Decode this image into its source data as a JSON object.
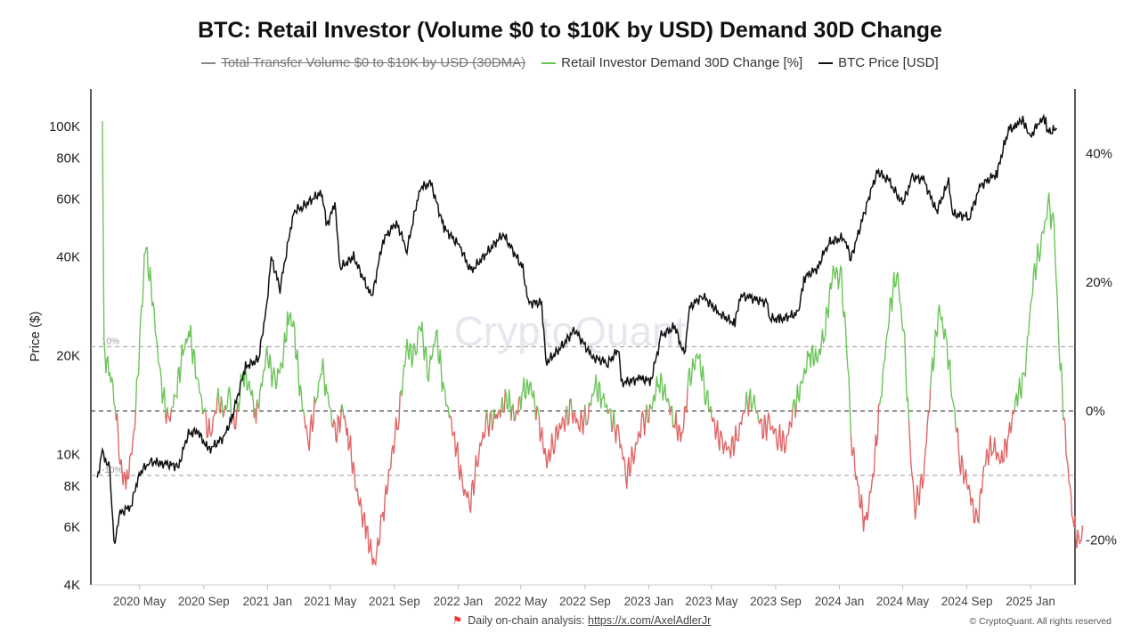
{
  "title": "BTC: Retail Investor (Volume $0 to $10K by USD) Demand 30D Change",
  "legend": [
    {
      "label": "Total Transfer Volume $0 to $10K by USD (30DMA)",
      "color": "#888888",
      "disabled": true
    },
    {
      "label": "Retail Investor Demand 30D Change [%]",
      "color": "#6cc55a",
      "disabled": false
    },
    {
      "label": "BTC Price [USD]",
      "color": "#111111",
      "disabled": false
    }
  ],
  "colors": {
    "positive": "#6cc55a",
    "negative": "#e06666",
    "price": "#111111"
  },
  "watermark": "CryptoQuant",
  "footer": {
    "text": "Daily on-chain analysis: ",
    "link": "https://x.com/AxelAdlerJr",
    "copyright": "© CryptoQuant. All rights reserved"
  },
  "chart_data": {
    "type": "line",
    "x_ticks": [
      "2020 May",
      "2020 Sep",
      "2021 Jan",
      "2021 May",
      "2021 Sep",
      "2022 Jan",
      "2022 May",
      "2022 Sep",
      "2023 Jan",
      "2023 May",
      "2023 Sep",
      "2024 Jan",
      "2024 May",
      "2024 Sep",
      "2025 Jan"
    ],
    "ylabel_left": "Price ($)",
    "y_left_scale": "log",
    "y_left_range": [
      4000,
      130000
    ],
    "y_left_ticks": [
      {
        "v": 4000,
        "label": "4K"
      },
      {
        "v": 6000,
        "label": "6K"
      },
      {
        "v": 8000,
        "label": "8K"
      },
      {
        "v": 10000,
        "label": "10K"
      },
      {
        "v": 20000,
        "label": "20K"
      },
      {
        "v": 40000,
        "label": "40K"
      },
      {
        "v": 60000,
        "label": "60K"
      },
      {
        "v": 80000,
        "label": "80K"
      },
      {
        "v": 100000,
        "label": "100K"
      }
    ],
    "y_right_range": [
      -27,
      50
    ],
    "y_right_ticks": [
      {
        "v": 40,
        "label": "40%"
      },
      {
        "v": 20,
        "label": "20%"
      },
      {
        "v": 0,
        "label": "0%"
      },
      {
        "v": -20,
        "label": "-20%"
      }
    ],
    "reference_lines": [
      {
        "v": 10,
        "label": "10%"
      },
      {
        "v": 0,
        "label": ""
      },
      {
        "v": -10,
        "label": "-10%"
      }
    ],
    "series": [
      {
        "name": "BTC Price [USD]",
        "axis": "left",
        "points": [
          [
            "2020-02-10",
            8500
          ],
          [
            "2020-02-20",
            10100
          ],
          [
            "2020-03-05",
            9000
          ],
          [
            "2020-03-13",
            5300
          ],
          [
            "2020-03-25",
            6600
          ],
          [
            "2020-04-15",
            7000
          ],
          [
            "2020-04-30",
            8700
          ],
          [
            "2020-05-20",
            9500
          ],
          [
            "2020-06-15",
            9400
          ],
          [
            "2020-07-15",
            9200
          ],
          [
            "2020-08-01",
            11500
          ],
          [
            "2020-08-20",
            11800
          ],
          [
            "2020-09-10",
            10300
          ],
          [
            "2020-10-10",
            11300
          ],
          [
            "2020-10-25",
            13000
          ],
          [
            "2020-11-20",
            18500
          ],
          [
            "2020-12-15",
            19500
          ],
          [
            "2020-12-31",
            29000
          ],
          [
            "2021-01-08",
            40000
          ],
          [
            "2021-01-25",
            32000
          ],
          [
            "2021-02-20",
            55000
          ],
          [
            "2021-03-10",
            57000
          ],
          [
            "2021-04-14",
            63000
          ],
          [
            "2021-04-25",
            50000
          ],
          [
            "2021-05-10",
            58000
          ],
          [
            "2021-05-20",
            37000
          ],
          [
            "2021-06-15",
            40000
          ],
          [
            "2021-07-20",
            30000
          ],
          [
            "2021-08-10",
            45000
          ],
          [
            "2021-09-05",
            51000
          ],
          [
            "2021-09-25",
            42000
          ],
          [
            "2021-10-20",
            65000
          ],
          [
            "2021-11-10",
            67000
          ],
          [
            "2021-12-05",
            49000
          ],
          [
            "2022-01-05",
            43000
          ],
          [
            "2022-01-25",
            36000
          ],
          [
            "2022-03-28",
            47000
          ],
          [
            "2022-05-05",
            37000
          ],
          [
            "2022-05-15",
            29000
          ],
          [
            "2022-06-10",
            29000
          ],
          [
            "2022-06-18",
            19000
          ],
          [
            "2022-07-15",
            21000
          ],
          [
            "2022-08-12",
            24000
          ],
          [
            "2022-09-15",
            19800
          ],
          [
            "2022-10-15",
            19000
          ],
          [
            "2022-11-05",
            21000
          ],
          [
            "2022-11-09",
            16500
          ],
          [
            "2022-12-15",
            17000
          ],
          [
            "2023-01-05",
            16800
          ],
          [
            "2023-01-25",
            23000
          ],
          [
            "2023-02-20",
            24500
          ],
          [
            "2023-03-10",
            20000
          ],
          [
            "2023-03-20",
            28000
          ],
          [
            "2023-04-14",
            30500
          ],
          [
            "2023-05-15",
            27000
          ],
          [
            "2023-06-15",
            25000
          ],
          [
            "2023-06-25",
            30500
          ],
          [
            "2023-07-15",
            30000
          ],
          [
            "2023-08-15",
            29000
          ],
          [
            "2023-08-20",
            26000
          ],
          [
            "2023-09-10",
            25800
          ],
          [
            "2023-10-15",
            27000
          ],
          [
            "2023-10-25",
            34500
          ],
          [
            "2023-11-20",
            37000
          ],
          [
            "2023-12-10",
            44000
          ],
          [
            "2024-01-10",
            46000
          ],
          [
            "2024-01-23",
            39500
          ],
          [
            "2024-02-28",
            62000
          ],
          [
            "2024-03-14",
            73000
          ],
          [
            "2024-04-05",
            68000
          ],
          [
            "2024-05-01",
            58000
          ],
          [
            "2024-05-20",
            70000
          ],
          [
            "2024-06-10",
            69000
          ],
          [
            "2024-07-05",
            55000
          ],
          [
            "2024-07-28",
            68000
          ],
          [
            "2024-08-05",
            54000
          ],
          [
            "2024-09-06",
            53000
          ],
          [
            "2024-09-27",
            66000
          ],
          [
            "2024-10-29",
            72000
          ],
          [
            "2024-11-13",
            90000
          ],
          [
            "2024-11-22",
            98000
          ],
          [
            "2024-12-05",
            100000
          ],
          [
            "2024-12-17",
            106000
          ],
          [
            "2024-12-30",
            92000
          ],
          [
            "2025-01-20",
            105000
          ],
          [
            "2025-01-30",
            104000
          ],
          [
            "2025-02-03",
            96000
          ],
          [
            "2025-02-10",
            97000
          ],
          [
            "2025-02-15",
            98000
          ],
          [
            "2025-02-20",
            98000
          ]
        ]
      },
      {
        "name": "Retail Investor Demand 30D Change [%]",
        "axis": "right",
        "points": [
          [
            "2020-02-20",
            45
          ],
          [
            "2020-02-23",
            9
          ],
          [
            "2020-03-05",
            6
          ],
          [
            "2020-03-15",
            2
          ],
          [
            "2020-03-25",
            -8
          ],
          [
            "2020-04-05",
            -12
          ],
          [
            "2020-04-20",
            -4
          ],
          [
            "2020-05-05",
            15
          ],
          [
            "2020-05-12",
            26
          ],
          [
            "2020-05-25",
            18
          ],
          [
            "2020-06-10",
            5
          ],
          [
            "2020-06-25",
            -2
          ],
          [
            "2020-07-10",
            3
          ],
          [
            "2020-07-25",
            10
          ],
          [
            "2020-08-05",
            12
          ],
          [
            "2020-08-20",
            5
          ],
          [
            "2020-09-05",
            -2
          ],
          [
            "2020-09-15",
            -4
          ],
          [
            "2020-09-25",
            2
          ],
          [
            "2020-10-10",
            0
          ],
          [
            "2020-10-20",
            2
          ],
          [
            "2020-10-30",
            -3
          ],
          [
            "2020-11-15",
            6
          ],
          [
            "2020-12-01",
            3
          ],
          [
            "2020-12-10",
            -1
          ],
          [
            "2020-12-31",
            9
          ],
          [
            "2021-01-15",
            4
          ],
          [
            "2021-01-30",
            8
          ],
          [
            "2021-02-10",
            15
          ],
          [
            "2021-02-20",
            13
          ],
          [
            "2021-03-05",
            3
          ],
          [
            "2021-03-20",
            -5
          ],
          [
            "2021-04-05",
            2
          ],
          [
            "2021-04-15",
            7
          ],
          [
            "2021-04-25",
            3
          ],
          [
            "2021-05-10",
            -4
          ],
          [
            "2021-05-25",
            0
          ],
          [
            "2021-06-05",
            -4
          ],
          [
            "2021-06-20",
            -12
          ],
          [
            "2021-07-10",
            -19
          ],
          [
            "2021-07-25",
            -24
          ],
          [
            "2021-08-10",
            -16
          ],
          [
            "2021-08-25",
            -8
          ],
          [
            "2021-09-10",
            0
          ],
          [
            "2021-09-25",
            10
          ],
          [
            "2021-10-10",
            8
          ],
          [
            "2021-10-20",
            14
          ],
          [
            "2021-11-05",
            6
          ],
          [
            "2021-11-20",
            12
          ],
          [
            "2021-12-05",
            3
          ],
          [
            "2021-12-25",
            -4
          ],
          [
            "2022-01-10",
            -12
          ],
          [
            "2022-01-25",
            -14
          ],
          [
            "2022-02-10",
            -6
          ],
          [
            "2022-02-25",
            -2
          ],
          [
            "2022-03-15",
            -1
          ],
          [
            "2022-04-05",
            2
          ],
          [
            "2022-04-20",
            -1
          ],
          [
            "2022-05-05",
            3
          ],
          [
            "2022-05-20",
            4
          ],
          [
            "2022-06-05",
            -2
          ],
          [
            "2022-06-20",
            -8
          ],
          [
            "2022-07-05",
            -4
          ],
          [
            "2022-07-20",
            -2
          ],
          [
            "2022-08-05",
            0
          ],
          [
            "2022-08-20",
            -2
          ],
          [
            "2022-09-05",
            -1
          ],
          [
            "2022-09-20",
            4
          ],
          [
            "2022-10-05",
            2
          ],
          [
            "2022-10-20",
            -1
          ],
          [
            "2022-11-05",
            -4
          ],
          [
            "2022-11-20",
            -10
          ],
          [
            "2022-12-05",
            -6
          ],
          [
            "2022-12-20",
            -2
          ],
          [
            "2023-01-05",
            0
          ],
          [
            "2023-01-20",
            5
          ],
          [
            "2023-02-05",
            2
          ],
          [
            "2023-02-20",
            -2
          ],
          [
            "2023-03-05",
            -4
          ],
          [
            "2023-03-20",
            5
          ],
          [
            "2023-04-05",
            9
          ],
          [
            "2023-04-20",
            3
          ],
          [
            "2023-05-05",
            -2
          ],
          [
            "2023-05-20",
            -5
          ],
          [
            "2023-06-05",
            -6
          ],
          [
            "2023-06-20",
            -4
          ],
          [
            "2023-07-05",
            1
          ],
          [
            "2023-07-20",
            2
          ],
          [
            "2023-08-05",
            -3
          ],
          [
            "2023-08-20",
            -2
          ],
          [
            "2023-09-05",
            -4
          ],
          [
            "2023-09-20",
            -5
          ],
          [
            "2023-10-05",
            0
          ],
          [
            "2023-10-20",
            4
          ],
          [
            "2023-11-05",
            9
          ],
          [
            "2023-11-20",
            8
          ],
          [
            "2023-12-05",
            13
          ],
          [
            "2023-12-20",
            22
          ],
          [
            "2024-01-05",
            20
          ],
          [
            "2024-01-15",
            10
          ],
          [
            "2024-01-25",
            -5
          ],
          [
            "2024-02-05",
            -12
          ],
          [
            "2024-02-20",
            -18
          ],
          [
            "2024-03-05",
            -10
          ],
          [
            "2024-03-20",
            2
          ],
          [
            "2024-04-05",
            15
          ],
          [
            "2024-04-20",
            22
          ],
          [
            "2024-05-05",
            10
          ],
          [
            "2024-05-15",
            -6
          ],
          [
            "2024-05-25",
            -15
          ],
          [
            "2024-06-10",
            -10
          ],
          [
            "2024-06-25",
            5
          ],
          [
            "2024-07-10",
            16
          ],
          [
            "2024-07-25",
            10
          ],
          [
            "2024-08-05",
            2
          ],
          [
            "2024-08-20",
            -8
          ],
          [
            "2024-09-05",
            -12
          ],
          [
            "2024-09-20",
            -18
          ],
          [
            "2024-10-05",
            -8
          ],
          [
            "2024-10-20",
            -5
          ],
          [
            "2024-11-05",
            -8
          ],
          [
            "2024-11-20",
            -4
          ],
          [
            "2024-12-05",
            2
          ],
          [
            "2024-12-20",
            5
          ],
          [
            "2025-01-05",
            20
          ],
          [
            "2025-01-20",
            26
          ],
          [
            "2025-02-05",
            32
          ],
          [
            "2025-02-15",
            28
          ],
          [
            "2025-02-25",
            10
          ],
          [
            "2025-03-10",
            -6
          ],
          [
            "2025-03-25",
            -18
          ],
          [
            "2025-04-05",
            -21
          ],
          [
            "2025-04-12",
            -18
          ]
        ]
      }
    ]
  }
}
